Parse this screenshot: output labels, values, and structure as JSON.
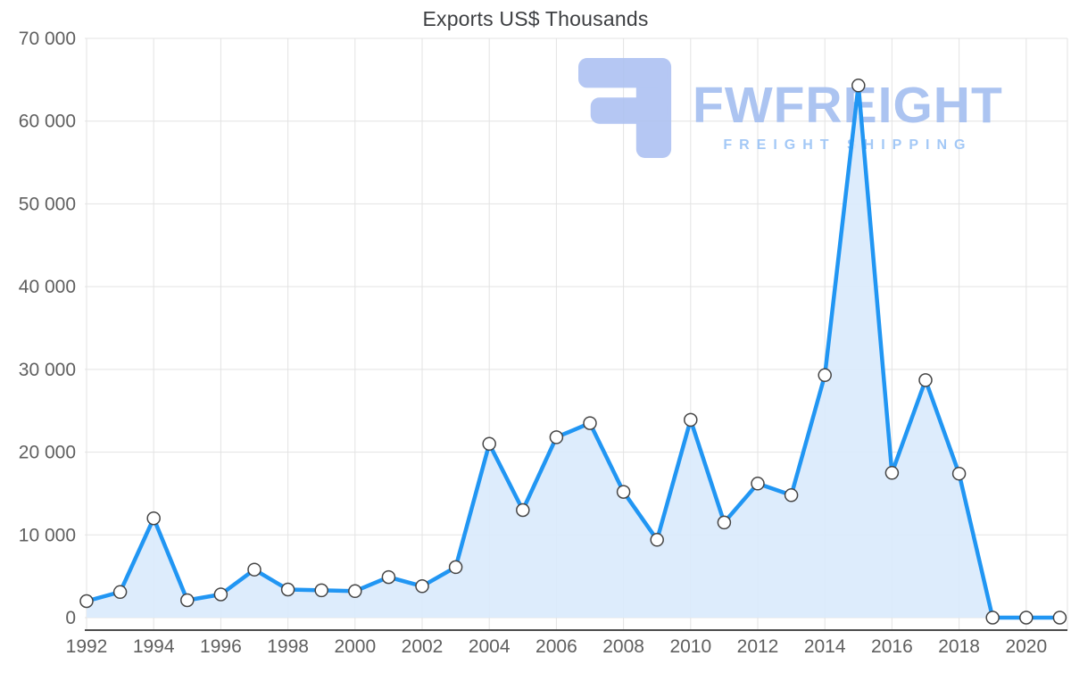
{
  "chart_data": {
    "type": "area",
    "title": "Exports US$ Thousands",
    "xlabel": "",
    "ylabel": "",
    "x": [
      1992,
      1993,
      1994,
      1995,
      1996,
      1997,
      1998,
      1999,
      2000,
      2001,
      2002,
      2003,
      2004,
      2005,
      2006,
      2007,
      2008,
      2009,
      2010,
      2011,
      2012,
      2013,
      2014,
      2015,
      2016,
      2017,
      2018,
      2019,
      2020,
      2021
    ],
    "values": [
      2000,
      3100,
      12000,
      2100,
      2800,
      5800,
      3400,
      3300,
      3200,
      4900,
      3800,
      6100,
      21000,
      13000,
      21800,
      23500,
      15200,
      9400,
      23900,
      11500,
      16200,
      14800,
      29300,
      64300,
      17500,
      28700,
      17400,
      0,
      0,
      0
    ],
    "ylim": [
      0,
      70000
    ],
    "ytick_step": 10000,
    "ytick_labels": [
      "0",
      "10 000",
      "20 000",
      "30 000",
      "40 000",
      "50 000",
      "60 000",
      "70 000"
    ],
    "xtick_labels": [
      "1992",
      "1994",
      "1996",
      "1998",
      "2000",
      "2002",
      "2004",
      "2006",
      "2008",
      "2010",
      "2012",
      "2014",
      "2016",
      "2018",
      "2020"
    ],
    "grid": true,
    "legend": "none",
    "line_color": "#2196f3",
    "area_color": "#d9eafc",
    "marker_fill": "#ffffff",
    "marker_stroke": "#454545"
  },
  "watermark": {
    "brand": "FWFREIGHT",
    "tagline": "FREIGHT SHIPPING",
    "logo_color": "#afc3f2",
    "brand_color": "#a6bff0",
    "tagline_color": "#9cc4f6"
  }
}
